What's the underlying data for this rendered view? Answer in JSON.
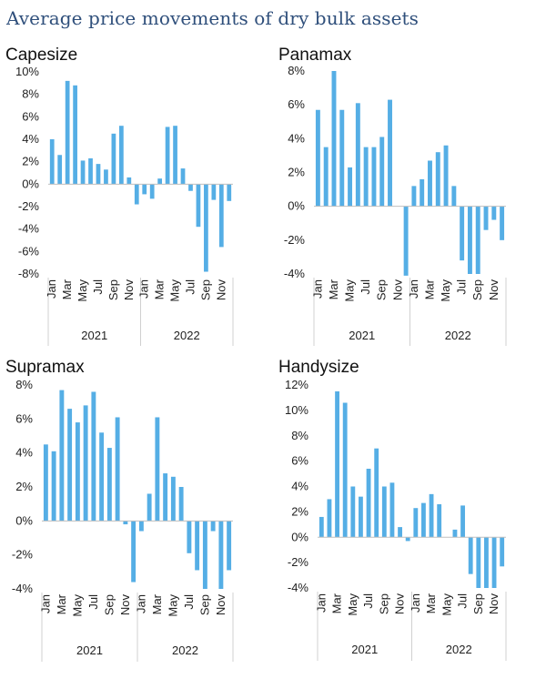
{
  "page_title": "Average price movements of dry bulk assets",
  "chart_data": [
    {
      "type": "bar",
      "title": "Capesize",
      "ylim": [
        -8,
        10
      ],
      "yticks": [
        10,
        8,
        6,
        4,
        2,
        0,
        -2,
        -4,
        -6,
        -8
      ],
      "ytick_labels": [
        "10%",
        "8%",
        "6%",
        "4%",
        "2%",
        "0%",
        "-2%",
        "-4%",
        "-6%",
        "-8%"
      ],
      "month_labels": [
        "Jan",
        "Mar",
        "May",
        "Jul",
        "Sep",
        "Nov",
        "Jan",
        "Mar",
        "May",
        "Jul",
        "Sep",
        "Nov"
      ],
      "year_labels": [
        "2021",
        "2022"
      ],
      "categories": [
        "Jan 2021",
        "Feb 2021",
        "Mar 2021",
        "Apr 2021",
        "May 2021",
        "Jun 2021",
        "Jul 2021",
        "Aug 2021",
        "Sep 2021",
        "Oct 2021",
        "Nov 2021",
        "Dec 2021",
        "Jan 2022",
        "Feb 2022",
        "Mar 2022",
        "Apr 2022",
        "May 2022",
        "Jun 2022",
        "Jul 2022",
        "Aug 2022",
        "Sep 2022",
        "Oct 2022",
        "Nov 2022",
        "Dec 2022"
      ],
      "values": [
        4.0,
        2.6,
        9.2,
        8.8,
        2.1,
        2.3,
        1.8,
        1.3,
        4.5,
        5.2,
        0.6,
        -1.8,
        -0.9,
        -1.3,
        0.5,
        5.1,
        5.2,
        1.4,
        -0.6,
        -3.8,
        -7.8,
        -1.4,
        -5.6,
        -1.5
      ]
    },
    {
      "type": "bar",
      "title": "Panamax",
      "ylim": [
        -4,
        8
      ],
      "yticks": [
        8,
        6,
        4,
        2,
        0,
        -2,
        -4
      ],
      "ytick_labels": [
        "8%",
        "6%",
        "4%",
        "2%",
        "0%",
        "-2%",
        "-4%"
      ],
      "month_labels": [
        "Jan",
        "Mar",
        "May",
        "Jul",
        "Sep",
        "Nov",
        "Jan",
        "Mar",
        "May",
        "Jul",
        "Sep",
        "Nov"
      ],
      "year_labels": [
        "2021",
        "2022"
      ],
      "categories": [
        "Jan 2021",
        "Feb 2021",
        "Mar 2021",
        "Apr 2021",
        "May 2021",
        "Jun 2021",
        "Jul 2021",
        "Aug 2021",
        "Sep 2021",
        "Oct 2021",
        "Nov 2021",
        "Dec 2021",
        "Jan 2022",
        "Feb 2022",
        "Mar 2022",
        "Apr 2022",
        "May 2022",
        "Jun 2022",
        "Jul 2022",
        "Aug 2022",
        "Sep 2022",
        "Oct 2022",
        "Nov 2022",
        "Dec 2022"
      ],
      "values": [
        5.7,
        3.5,
        8.0,
        5.7,
        2.3,
        6.1,
        3.5,
        3.5,
        4.1,
        6.3,
        0.0,
        -4.1,
        1.2,
        1.6,
        2.7,
        3.2,
        3.6,
        1.2,
        -3.2,
        -4.0,
        -4.0,
        -1.4,
        -0.8,
        -2.0
      ]
    },
    {
      "type": "bar",
      "title": "Supramax",
      "ylim": [
        -4,
        8
      ],
      "yticks": [
        8,
        6,
        4,
        2,
        0,
        -2,
        -4
      ],
      "ytick_labels": [
        "8%",
        "6%",
        "4%",
        "2%",
        "0%",
        "-2%",
        "-4%"
      ],
      "month_labels": [
        "Jan",
        "Mar",
        "May",
        "Jul",
        "Sep",
        "Nov",
        "Jan",
        "Mar",
        "May",
        "Jul",
        "Sep",
        "Nov"
      ],
      "year_labels": [
        "2021",
        "2022"
      ],
      "categories": [
        "Jan 2021",
        "Feb 2021",
        "Mar 2021",
        "Apr 2021",
        "May 2021",
        "Jun 2021",
        "Jul 2021",
        "Aug 2021",
        "Sep 2021",
        "Oct 2021",
        "Nov 2021",
        "Dec 2021",
        "Jan 2022",
        "Feb 2022",
        "Mar 2022",
        "Apr 2022",
        "May 2022",
        "Jun 2022",
        "Jul 2022",
        "Aug 2022",
        "Sep 2022",
        "Oct 2022",
        "Nov 2022",
        "Dec 2022"
      ],
      "values": [
        4.5,
        4.1,
        7.7,
        6.6,
        5.8,
        6.8,
        7.6,
        5.2,
        4.3,
        6.1,
        -0.2,
        -3.6,
        -0.6,
        1.6,
        6.1,
        2.8,
        2.6,
        2.0,
        -1.9,
        -2.9,
        -4.0,
        -0.6,
        -4.0,
        -2.9
      ]
    },
    {
      "type": "bar",
      "title": "Handysize",
      "ylim": [
        -4,
        12
      ],
      "yticks": [
        12,
        10,
        8,
        6,
        4,
        2,
        0,
        -2,
        -4
      ],
      "ytick_labels": [
        "12%",
        "10%",
        "8%",
        "6%",
        "4%",
        "2%",
        "0%",
        "-2%",
        "-4%"
      ],
      "month_labels": [
        "Jan",
        "Mar",
        "May",
        "Jul",
        "Sep",
        "Nov",
        "Jan",
        "Mar",
        "May",
        "Jul",
        "Sep",
        "Nov"
      ],
      "year_labels": [
        "2021",
        "2022"
      ],
      "categories": [
        "Jan 2021",
        "Feb 2021",
        "Mar 2021",
        "Apr 2021",
        "May 2021",
        "Jun 2021",
        "Jul 2021",
        "Aug 2021",
        "Sep 2021",
        "Oct 2021",
        "Nov 2021",
        "Dec 2021",
        "Jan 2022",
        "Feb 2022",
        "Mar 2022",
        "Apr 2022",
        "May 2022",
        "Jun 2022",
        "Jul 2022",
        "Aug 2022",
        "Sep 2022",
        "Oct 2022",
        "Nov 2022",
        "Dec 2022"
      ],
      "values": [
        1.6,
        3.0,
        11.5,
        10.6,
        4.0,
        3.2,
        5.4,
        7.0,
        4.0,
        4.3,
        0.8,
        -0.3,
        2.3,
        2.7,
        3.4,
        2.6,
        0.0,
        0.6,
        2.5,
        -2.9,
        -4.0,
        -4.0,
        -4.0,
        -2.3
      ]
    }
  ]
}
